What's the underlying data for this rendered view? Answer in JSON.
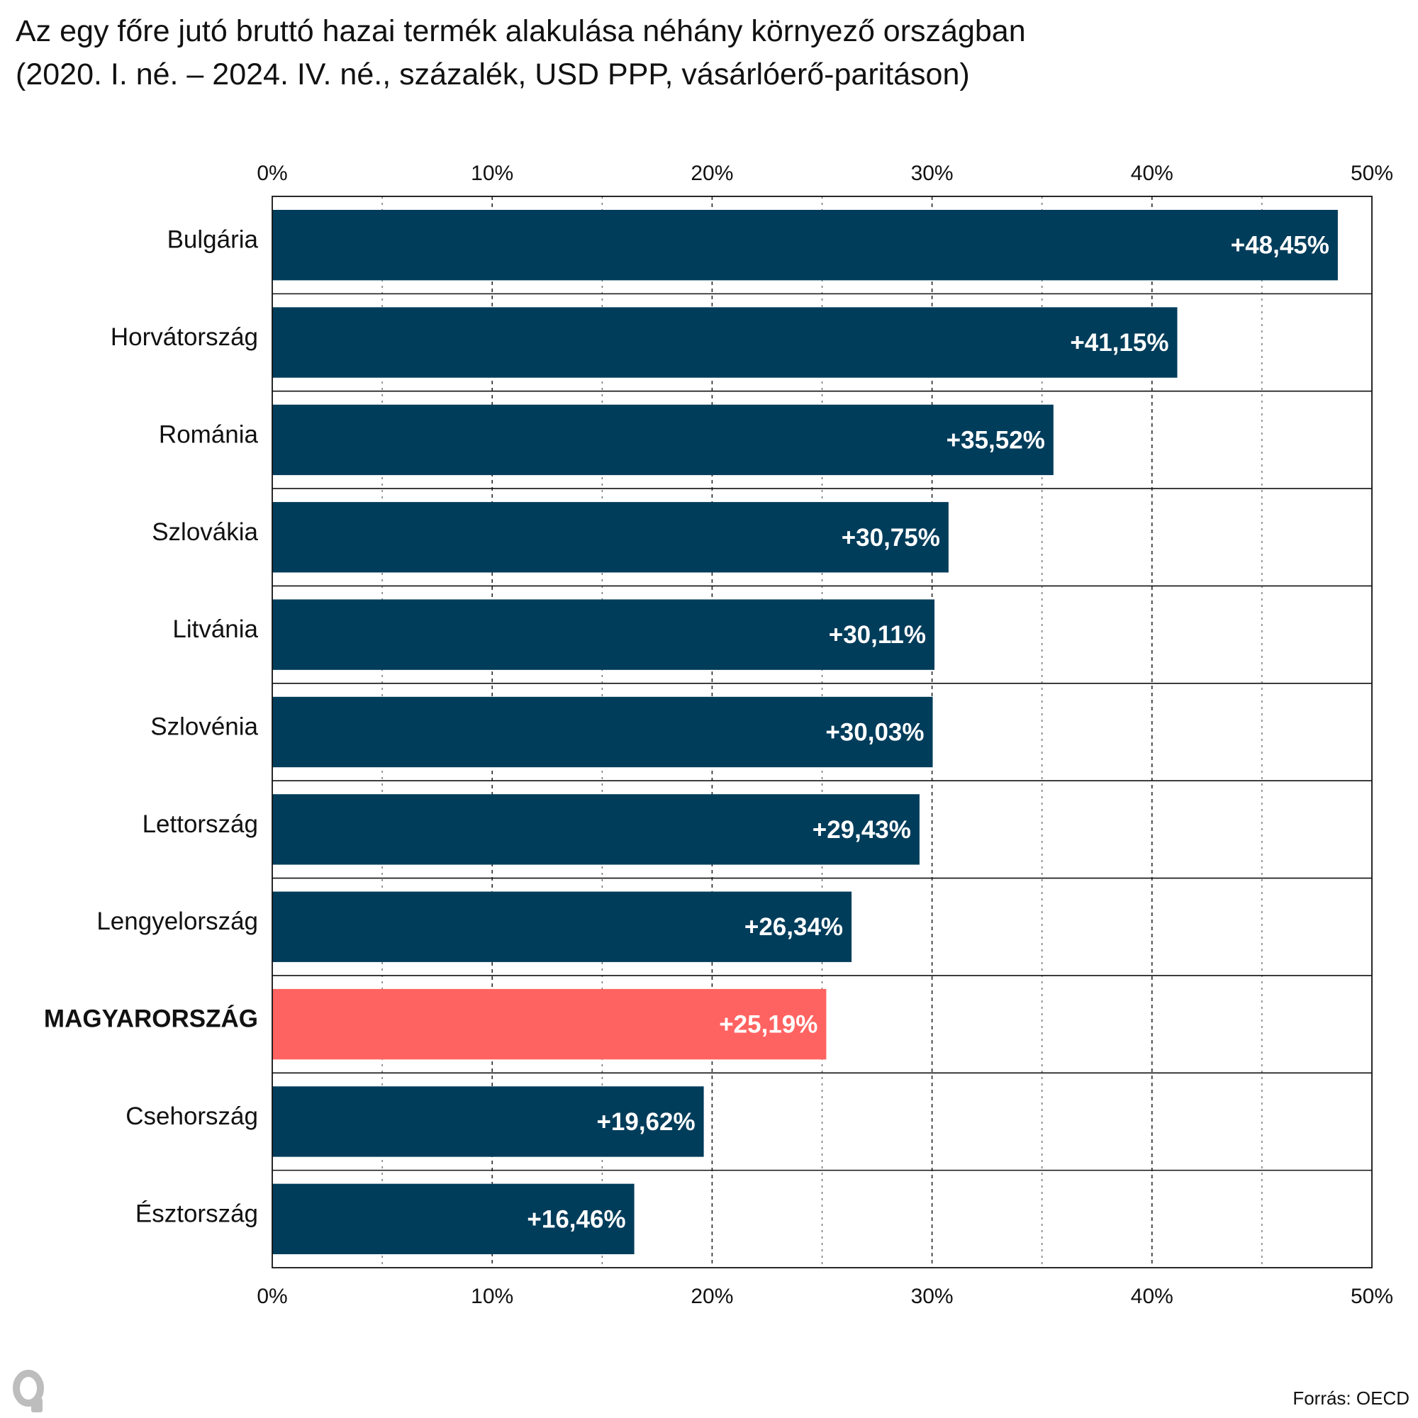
{
  "title": "Az egy főre jutó bruttó hazai termék alakulása néhány környező országban",
  "subtitle": "(2020. I. né. – 2024. IV. né., százalék, USD PPP, vásárlóerő-paritáson)",
  "source": "Forrás: OECD",
  "chart_data": {
    "type": "bar",
    "orientation": "horizontal",
    "categories": [
      "Bulgária",
      "Horvátország",
      "Románia",
      "Szlovákia",
      "Litvánia",
      "Szlovénia",
      "Lettország",
      "Lengyelország",
      "MAGYARORSZÁG",
      "Csehország",
      "Észtország"
    ],
    "values": [
      48.45,
      41.15,
      35.52,
      30.75,
      30.11,
      30.03,
      29.43,
      26.34,
      25.19,
      19.62,
      16.46
    ],
    "value_labels": [
      "+48,45%",
      "+41,15%",
      "+35,52%",
      "+30,75%",
      "+30,11%",
      "+30,03%",
      "+29,43%",
      "+26,34%",
      "+25,19%",
      "+19,62%",
      "+16,46%"
    ],
    "highlight": "MAGYARORSZÁG",
    "xlim": [
      0,
      50
    ],
    "xticks": [
      0,
      10,
      20,
      30,
      40,
      50
    ],
    "xtick_labels": [
      "0%",
      "10%",
      "20%",
      "30%",
      "40%",
      "50%"
    ],
    "grid": true,
    "colors": {
      "bar": "#003d5b",
      "highlight": "#ff6361"
    }
  }
}
